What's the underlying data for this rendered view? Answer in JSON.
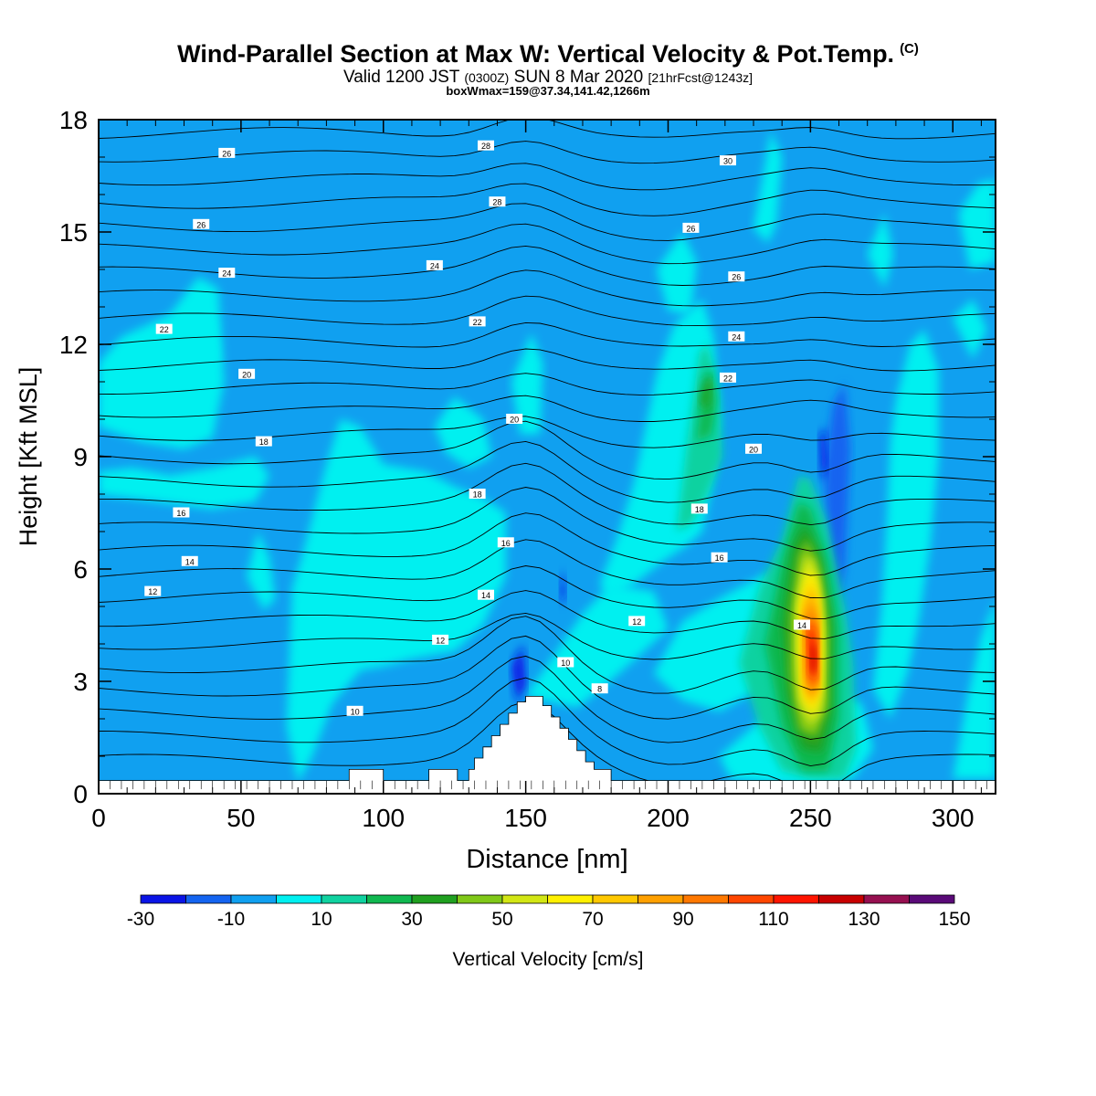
{
  "header": {
    "title": "Wind-Parallel Section at Max W: Vertical Velocity & Pot.Temp.",
    "copyright": "(C)",
    "valid_prefix": "Valid 1200 JST",
    "valid_zulu": "(0300Z)",
    "valid_date": "SUN 8 Mar 2020",
    "forecast": "[21hrFcst@1243z]",
    "box_line": "boxWmax=159@37.34,141.42,1266m"
  },
  "chart_data": {
    "type": "heatmap",
    "xlabel": "Distance [nm]",
    "ylabel": "Height [Kft MSL]",
    "xlim": [
      0,
      315
    ],
    "ylim": [
      0,
      18
    ],
    "x_ticks": [
      0,
      50,
      100,
      150,
      200,
      250,
      300
    ],
    "y_ticks": [
      0,
      3,
      6,
      9,
      12,
      15,
      18
    ],
    "colorbar": {
      "label": "Vertical Velocity [cm/s]",
      "tick_labels": [
        "-30",
        "-10",
        "10",
        "30",
        "50",
        "70",
        "90",
        "110",
        "130",
        "150"
      ],
      "levels": [
        -30,
        -20,
        -10,
        0,
        10,
        20,
        30,
        40,
        50,
        60,
        70,
        80,
        90,
        100,
        110,
        120,
        130,
        140,
        150
      ],
      "colors": [
        "#0a14e6",
        "#1464f0",
        "#10a0f0",
        "#00f0f0",
        "#10d2a0",
        "#10b850",
        "#20a020",
        "#80c818",
        "#d2e614",
        "#fff000",
        "#ffc800",
        "#ffa000",
        "#ff7800",
        "#ff4600",
        "#ff1400",
        "#c80000",
        "#961050",
        "#5a0a78"
      ]
    },
    "background_color": "#10a0f0",
    "terrain_color": "#ffffff",
    "contour_color": "#000000",
    "contour_labels": [
      {
        "text": "26",
        "x": 45,
        "y": 17.1
      },
      {
        "text": "28",
        "x": 136,
        "y": 17.3
      },
      {
        "text": "30",
        "x": 221,
        "y": 16.9
      },
      {
        "text": "26",
        "x": 36,
        "y": 15.2
      },
      {
        "text": "28",
        "x": 140,
        "y": 15.8
      },
      {
        "text": "26",
        "x": 208,
        "y": 15.1
      },
      {
        "text": "24",
        "x": 45,
        "y": 13.9
      },
      {
        "text": "24",
        "x": 118,
        "y": 14.1
      },
      {
        "text": "26",
        "x": 224,
        "y": 13.8
      },
      {
        "text": "22",
        "x": 23,
        "y": 12.4
      },
      {
        "text": "22",
        "x": 133,
        "y": 12.6
      },
      {
        "text": "24",
        "x": 224,
        "y": 12.2
      },
      {
        "text": "20",
        "x": 52,
        "y": 11.2
      },
      {
        "text": "22",
        "x": 221,
        "y": 11.1
      },
      {
        "text": "20",
        "x": 146,
        "y": 10.0
      },
      {
        "text": "18",
        "x": 58,
        "y": 9.4
      },
      {
        "text": "20",
        "x": 230,
        "y": 9.2
      },
      {
        "text": "18",
        "x": 133,
        "y": 8.0
      },
      {
        "text": "16",
        "x": 29,
        "y": 7.5
      },
      {
        "text": "18",
        "x": 211,
        "y": 7.6
      },
      {
        "text": "16",
        "x": 143,
        "y": 6.7
      },
      {
        "text": "14",
        "x": 32,
        "y": 6.2
      },
      {
        "text": "16",
        "x": 218,
        "y": 6.3
      },
      {
        "text": "12",
        "x": 19,
        "y": 5.4
      },
      {
        "text": "14",
        "x": 136,
        "y": 5.3
      },
      {
        "text": "12",
        "x": 189,
        "y": 4.6
      },
      {
        "text": "14",
        "x": 247,
        "y": 4.5
      },
      {
        "text": "12",
        "x": 120,
        "y": 4.1
      },
      {
        "text": "10",
        "x": 164,
        "y": 3.5
      },
      {
        "text": "8",
        "x": 176,
        "y": 2.8
      },
      {
        "text": "10",
        "x": 90,
        "y": 2.2
      }
    ]
  }
}
